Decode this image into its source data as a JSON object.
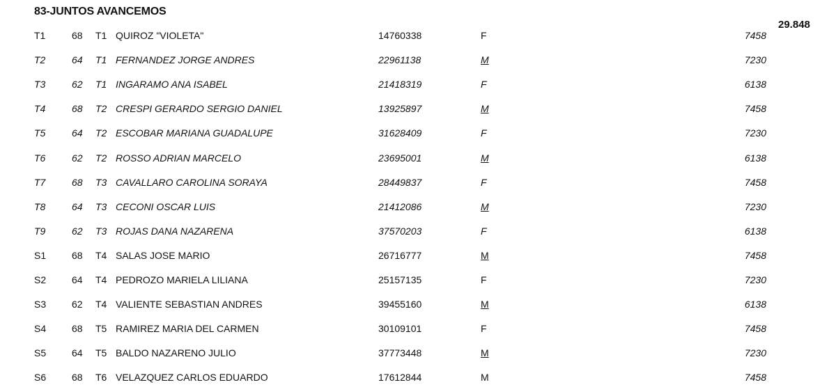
{
  "title": "83-JUNTOS AVANCEMOS",
  "total": "29.848",
  "rows": [
    {
      "code": "T1",
      "num": "68",
      "tier": "T1",
      "name": "QUIROZ \"VIOLETA\"",
      "dni": "14760338",
      "sex": "F",
      "value": "7458",
      "italic": false,
      "sex_underline": false
    },
    {
      "code": "T2",
      "num": "64",
      "tier": "T1",
      "name": "FERNANDEZ JORGE ANDRES",
      "dni": "22961138",
      "sex": "M",
      "value": "7230",
      "italic": true,
      "sex_underline": true
    },
    {
      "code": "T3",
      "num": "62",
      "tier": "T1",
      "name": "INGARAMO ANA ISABEL",
      "dni": "21418319",
      "sex": "F",
      "value": "6138",
      "italic": true,
      "sex_underline": false
    },
    {
      "code": "T4",
      "num": "68",
      "tier": "T2",
      "name": "CRESPI GERARDO SERGIO DANIEL",
      "dni": "13925897",
      "sex": "M",
      "value": "7458",
      "italic": true,
      "sex_underline": true
    },
    {
      "code": "T5",
      "num": "64",
      "tier": "T2",
      "name": "ESCOBAR MARIANA GUADALUPE",
      "dni": "31628409",
      "sex": "F",
      "value": "7230",
      "italic": true,
      "sex_underline": false
    },
    {
      "code": "T6",
      "num": "62",
      "tier": "T2",
      "name": "ROSSO ADRIAN MARCELO",
      "dni": "23695001",
      "sex": "M",
      "value": "6138",
      "italic": true,
      "sex_underline": true
    },
    {
      "code": "T7",
      "num": "68",
      "tier": "T3",
      "name": "CAVALLARO CAROLINA SORAYA",
      "dni": "28449837",
      "sex": "F",
      "value": "7458",
      "italic": true,
      "sex_underline": false
    },
    {
      "code": "T8",
      "num": "64",
      "tier": "T3",
      "name": "CECONI OSCAR LUIS",
      "dni": "21412086",
      "sex": "M",
      "value": "7230",
      "italic": true,
      "sex_underline": true
    },
    {
      "code": "T9",
      "num": "62",
      "tier": "T3",
      "name": "ROJAS DANA NAZARENA",
      "dni": "37570203",
      "sex": "F",
      "value": "6138",
      "italic": true,
      "sex_underline": false
    },
    {
      "code": "S1",
      "num": "68",
      "tier": "T4",
      "name": "SALAS JOSE MARIO",
      "dni": "26716777",
      "sex": "M",
      "value": "7458",
      "italic": false,
      "sex_underline": true
    },
    {
      "code": "S2",
      "num": "64",
      "tier": "T4",
      "name": "PEDROZO MARIELA LILIANA",
      "dni": "25157135",
      "sex": "F",
      "value": "7230",
      "italic": false,
      "sex_underline": false
    },
    {
      "code": "S3",
      "num": "62",
      "tier": "T4",
      "name": "VALIENTE SEBASTIAN ANDRES",
      "dni": "39455160",
      "sex": "M",
      "value": "6138",
      "italic": false,
      "sex_underline": true
    },
    {
      "code": "S4",
      "num": "68",
      "tier": "T5",
      "name": "RAMIREZ MARIA DEL CARMEN",
      "dni": "30109101",
      "sex": "F",
      "value": "7458",
      "italic": false,
      "sex_underline": false
    },
    {
      "code": "S5",
      "num": "64",
      "tier": "T5",
      "name": "BALDO NAZARENO JULIO",
      "dni": "37773448",
      "sex": "M",
      "value": "7230",
      "italic": false,
      "sex_underline": true
    },
    {
      "code": "S6",
      "num": "68",
      "tier": "T6",
      "name": "VELAZQUEZ CARLOS EDUARDO",
      "dni": "17612844",
      "sex": "M",
      "value": "7458",
      "italic": false,
      "sex_underline": false
    }
  ]
}
